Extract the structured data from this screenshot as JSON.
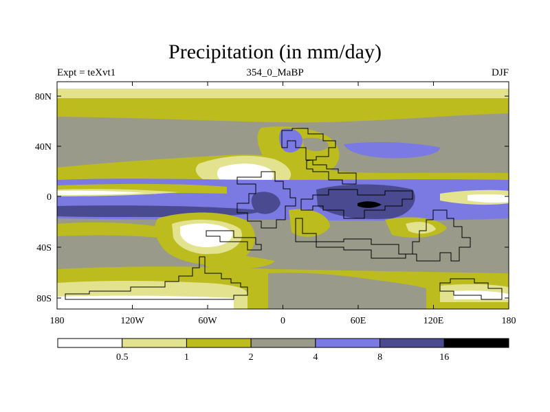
{
  "title": "Precipitation (in mm/day)",
  "left_string": "Expt = teXvt1",
  "center_string": "354_0_MaBP",
  "right_string": "DJF",
  "map": {
    "projection": "cylindrical equidistant",
    "lon_range": [
      -180,
      180
    ],
    "lat_range": [
      -90,
      90
    ],
    "x_ticks": [
      "180",
      "120W",
      "60W",
      "0",
      "60E",
      "120E",
      "180"
    ],
    "y_ticks": [
      "80N",
      "40N",
      "0",
      "40S",
      "80S"
    ]
  },
  "colorbar": {
    "levels": [
      "0.5",
      "1",
      "2",
      "4",
      "8",
      "16"
    ],
    "colors": [
      "#ffffff",
      "#e3e38f",
      "#bcbc1e",
      "#9a9a8a",
      "#7a7ae2",
      "#4a4a90",
      "#000000"
    ]
  }
}
